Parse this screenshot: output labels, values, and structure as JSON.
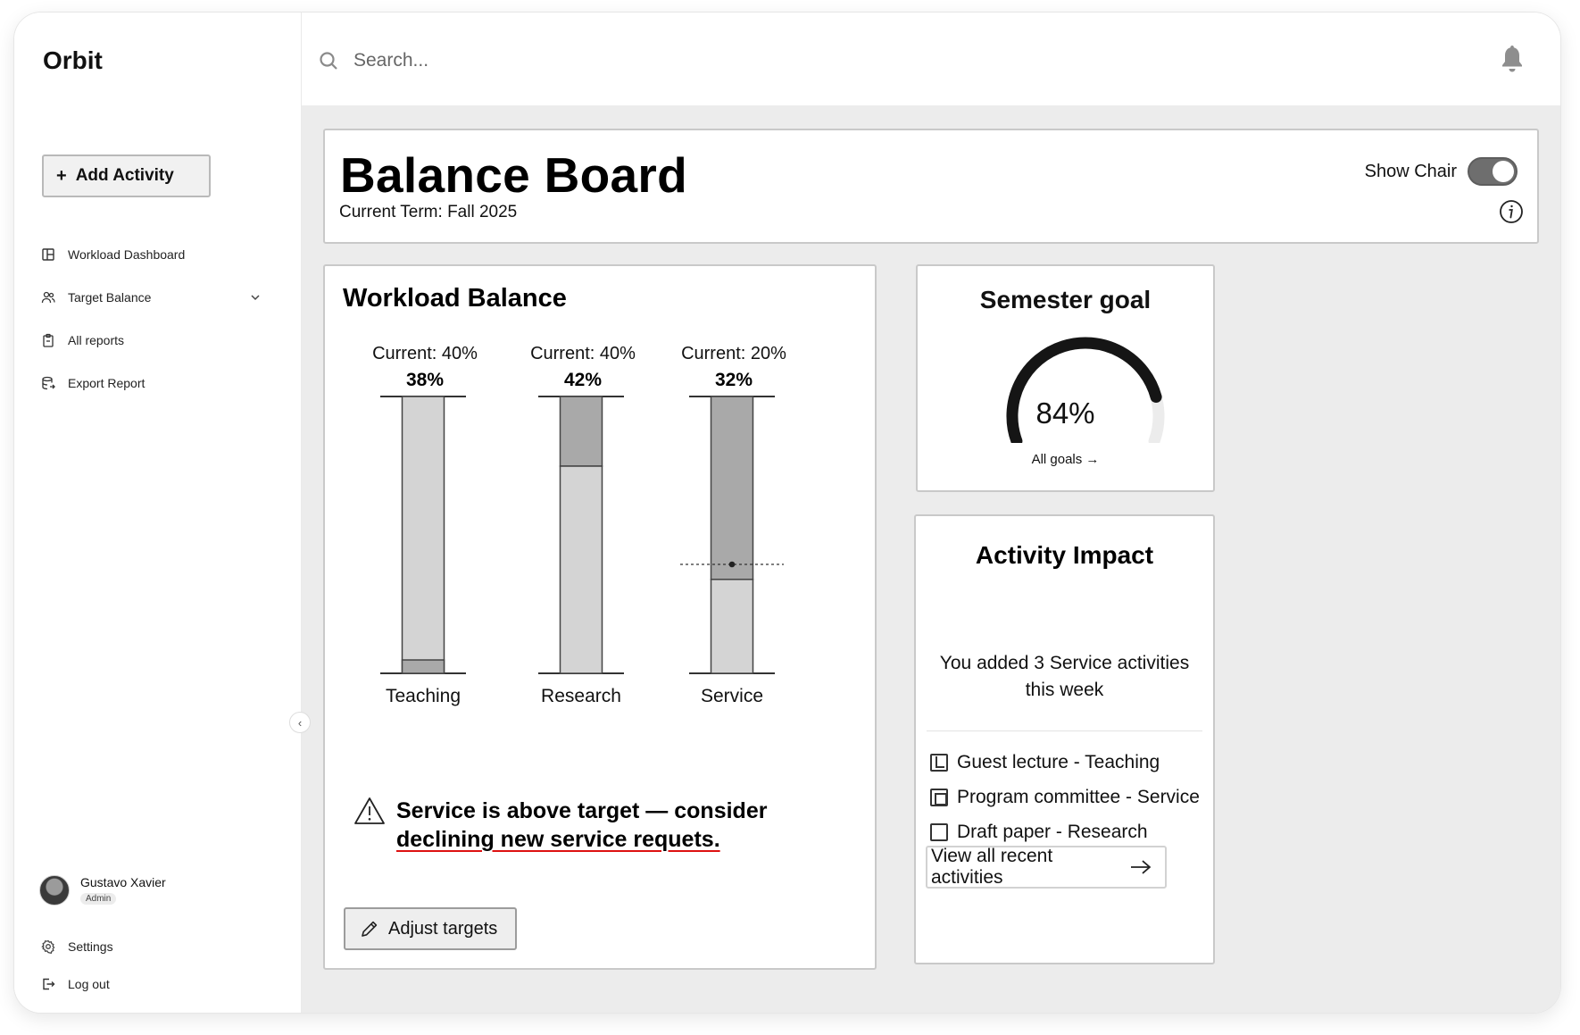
{
  "app": {
    "name": "Orbit"
  },
  "sidebar": {
    "add_label": "Add Activity",
    "items": [
      {
        "label": "Workload Dashboard",
        "icon": "dashboard-icon"
      },
      {
        "label": "Target Balance",
        "icon": "users-icon",
        "expandable": true
      },
      {
        "label": "All reports",
        "icon": "clipboard-icon"
      },
      {
        "label": "Export Report",
        "icon": "database-icon"
      }
    ],
    "user": {
      "name": "Gustavo Xavier",
      "role": "Admin"
    },
    "footer": [
      {
        "label": "Settings",
        "icon": "gear-icon"
      },
      {
        "label": "Log out",
        "icon": "logout-icon"
      }
    ]
  },
  "topbar": {
    "search_placeholder": "Search..."
  },
  "header": {
    "title": "Balance Board",
    "term": "Current Term: Fall 2025",
    "chair_label": "Show Chair",
    "chair_on": true
  },
  "workload": {
    "title": "Workload Balance",
    "warning_line1": "Service is above target — consider",
    "warning_line2": "declining new service requets.",
    "adjust_label": "Adjust targets"
  },
  "chart_data": {
    "type": "bar",
    "categories": [
      "Teaching",
      "Research",
      "Service"
    ],
    "target_labels": [
      "Current: 40%",
      "Current: 40%",
      "Current: 20%"
    ],
    "value_labels": [
      "38%",
      "42%",
      "32%"
    ],
    "target": [
      40,
      40,
      20
    ],
    "values": [
      38,
      42,
      32
    ],
    "colors": {
      "fill": "#d4d4d4",
      "over": "#a9a9a9"
    }
  },
  "goal": {
    "title": "Semester goal",
    "value": 84,
    "value_label": "84%",
    "link_label": "All goals →"
  },
  "activity": {
    "title": "Activity Impact",
    "message": "You added 3 Service activities this week",
    "items": [
      {
        "label": "Guest lecture - Teaching",
        "state": "done"
      },
      {
        "label": "Program committee - Service",
        "state": "partial"
      },
      {
        "label": "Draft paper - Research",
        "state": "empty"
      }
    ],
    "view_all_label": "View all recent activities"
  }
}
